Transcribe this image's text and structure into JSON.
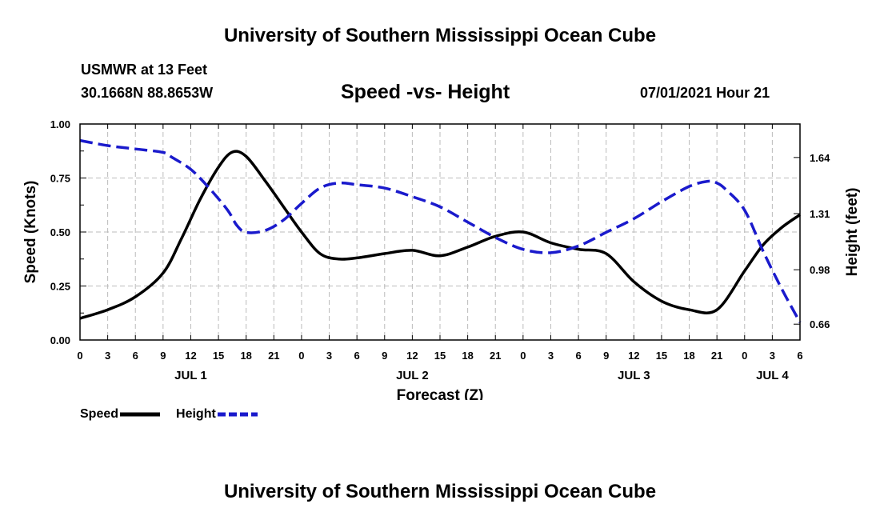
{
  "header": {
    "title_top": "University of Southern Mississippi Ocean Cube",
    "title_bottom": "University of Southern Mississippi Ocean Cube",
    "station": "USMWR at 13 Feet",
    "coords": "30.1668N  88.8653W",
    "chart_title": "Speed -vs- Height",
    "timestamp": "07/01/2021 Hour 21"
  },
  "colors": {
    "speed": "#000000",
    "height": "#1a1acc",
    "grid": "#bbbbbb"
  },
  "legend": {
    "speed_label": "Speed",
    "height_label": "Height"
  },
  "chart_data": {
    "type": "line",
    "title": "Speed -vs- Height",
    "xlabel": "Forecast (Z)",
    "ylabel": "Speed (Knots)",
    "y2label": "Height (feet)",
    "x_range": [
      0,
      78
    ],
    "x_tick_values": [
      0,
      3,
      6,
      9,
      12,
      15,
      18,
      21,
      24,
      27,
      30,
      33,
      36,
      39,
      42,
      45,
      48,
      51,
      54,
      57,
      60,
      63,
      66,
      69,
      72,
      75,
      78
    ],
    "x_tick_labels": [
      "0",
      "3",
      "6",
      "9",
      "12",
      "15",
      "18",
      "21",
      "0",
      "3",
      "6",
      "9",
      "12",
      "15",
      "18",
      "21",
      "0",
      "3",
      "6",
      "9",
      "12",
      "15",
      "18",
      "21",
      "0",
      "3",
      "6"
    ],
    "day_labels": [
      {
        "label": "JUL 1",
        "x": 12
      },
      {
        "label": "JUL 2",
        "x": 36
      },
      {
        "label": "JUL 3",
        "x": 60
      },
      {
        "label": "JUL 4",
        "x": 75
      }
    ],
    "ylim": [
      0,
      1.0
    ],
    "y_ticks": [
      0.0,
      0.25,
      0.5,
      0.75,
      1.0
    ],
    "y_tick_labels": [
      "0.00",
      "0.25",
      "0.50",
      "0.75",
      "1.00"
    ],
    "y2lim": [
      0.5669,
      1.8369
    ],
    "y2_ticks": [
      0.66,
      0.98,
      1.31,
      1.64
    ],
    "y2_tick_labels": [
      "0.66",
      "0.98",
      "1.31",
      "1.64"
    ],
    "series": [
      {
        "name": "Speed",
        "axis": "left",
        "style": "solid",
        "x": [
          0,
          3,
          6,
          9,
          11,
          13,
          15,
          16.5,
          18,
          20,
          22,
          24,
          26,
          28,
          30,
          33,
          36,
          39,
          42,
          45,
          48,
          51,
          54,
          57,
          60,
          63,
          66,
          69,
          72,
          74,
          76,
          78
        ],
        "values": [
          0.1,
          0.14,
          0.2,
          0.31,
          0.47,
          0.65,
          0.8,
          0.87,
          0.85,
          0.74,
          0.62,
          0.5,
          0.4,
          0.375,
          0.38,
          0.4,
          0.415,
          0.39,
          0.43,
          0.48,
          0.5,
          0.45,
          0.42,
          0.4,
          0.27,
          0.18,
          0.14,
          0.14,
          0.32,
          0.44,
          0.52,
          0.58
        ]
      },
      {
        "name": "Height",
        "axis": "right",
        "style": "dashed",
        "x": [
          0,
          3,
          6,
          9,
          10,
          12,
          14,
          16,
          17,
          18,
          20,
          22,
          24,
          26,
          28,
          30,
          33,
          36,
          39,
          42,
          45,
          48,
          51,
          54,
          57,
          60,
          63,
          66,
          68,
          69,
          70,
          72,
          74,
          76,
          78
        ],
        "values": [
          1.74,
          1.71,
          1.69,
          1.67,
          1.64,
          1.57,
          1.46,
          1.33,
          1.24,
          1.2,
          1.21,
          1.27,
          1.37,
          1.46,
          1.49,
          1.48,
          1.46,
          1.41,
          1.35,
          1.26,
          1.17,
          1.1,
          1.08,
          1.12,
          1.2,
          1.28,
          1.38,
          1.47,
          1.5,
          1.49,
          1.45,
          1.33,
          1.09,
          0.87,
          0.67
        ]
      }
    ]
  }
}
